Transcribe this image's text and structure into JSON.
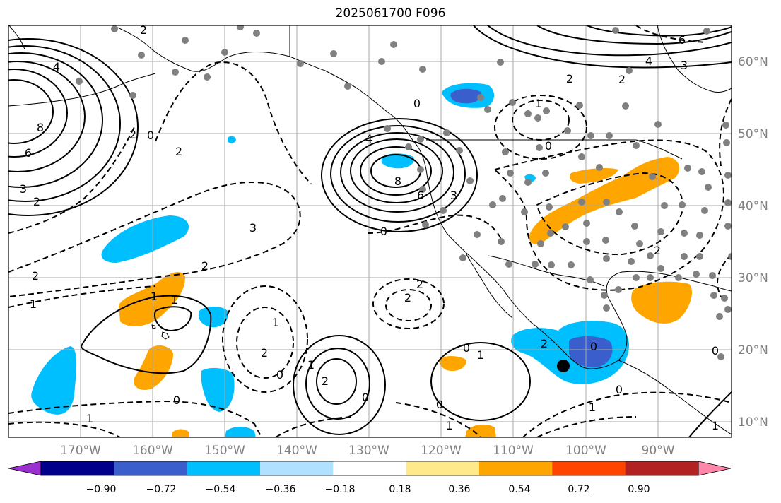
{
  "title": "2025061700 F096",
  "map": {
    "projection": "cylindrical",
    "lon_range": [
      -178,
      -78
    ],
    "lat_range": [
      8,
      65
    ],
    "lon_ticks": [
      "170°W",
      "160°W",
      "150°W",
      "140°W",
      "130°W",
      "120°W",
      "110°W",
      "100°W",
      "90°W"
    ],
    "lat_ticks": [
      "60°N",
      "50°N",
      "40°N",
      "30°N",
      "20°N",
      "10°N"
    ],
    "gridlines": true,
    "coastlines": true
  },
  "contour_labels": {
    "positive": [
      "4",
      "8",
      "6",
      "3",
      "2",
      "4",
      "8",
      "6",
      "3",
      "2",
      "1",
      "2",
      "1",
      "1",
      "6",
      "4",
      "3",
      "2",
      "1"
    ],
    "zero": [
      "0",
      "0",
      "0",
      "0",
      "0",
      "0",
      "0",
      "0",
      "0",
      "0",
      "0"
    ],
    "negative": [
      "2",
      "2",
      "3",
      "2",
      "1",
      "1",
      "2",
      "2",
      "0",
      "1",
      "2",
      "2",
      "2",
      "1",
      "1",
      "1",
      "2",
      "2",
      "1"
    ]
  },
  "marker": {
    "label": "black-dot"
  },
  "colorbar": {
    "orientation": "horizontal",
    "extend": "both",
    "tick_labels": [
      "−0.90",
      "−0.72",
      "−0.54",
      "−0.36",
      "−0.18",
      "0.18",
      "0.36",
      "0.54",
      "0.72",
      "0.90"
    ],
    "colors": [
      "#9b30d0",
      "#00008b",
      "#3a5fcd",
      "#00bfff",
      "#b0e2ff",
      "#ffffff",
      "#ffe98a",
      "#ffa500",
      "#ff4500",
      "#b22222",
      "#ff88aa"
    ]
  }
}
